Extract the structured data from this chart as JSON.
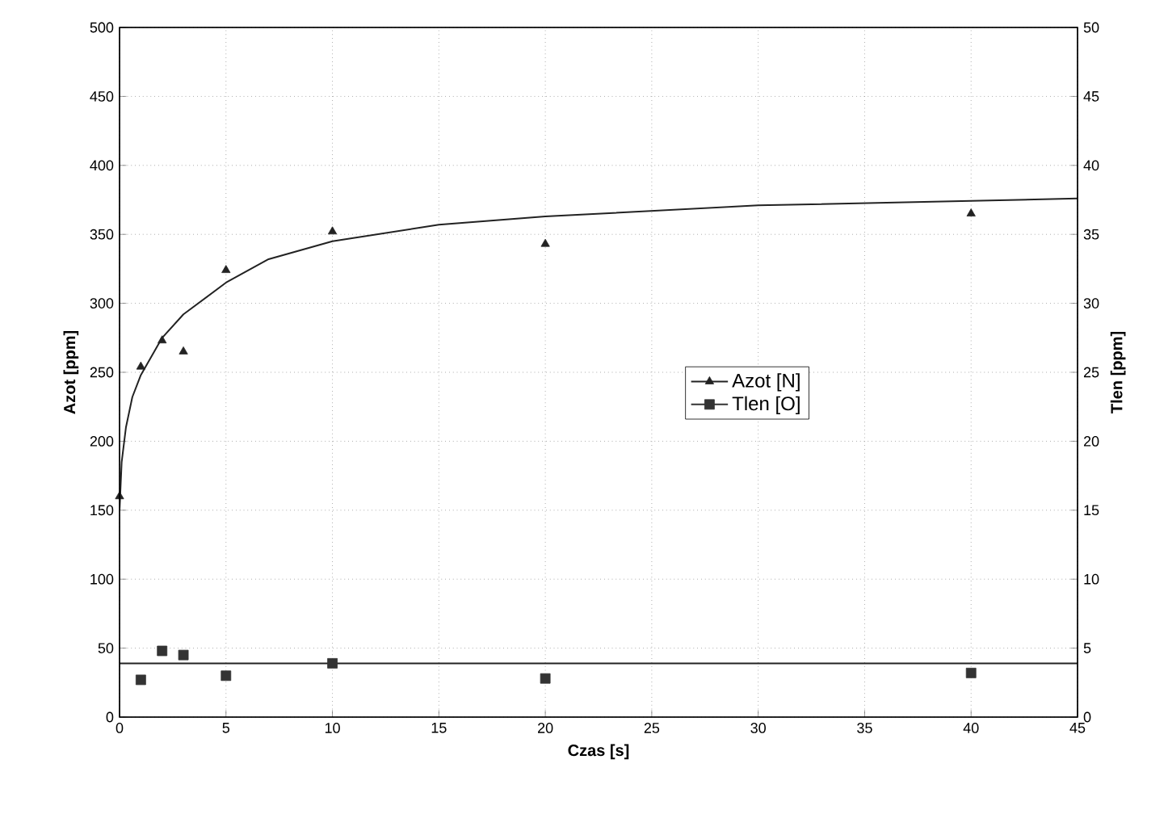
{
  "chart_data": {
    "type": "scatter",
    "xlabel": "Czas [s]",
    "ylabel": "Azot [ppm]",
    "y2label": "Tlen [ppm]",
    "xlim": [
      0,
      45
    ],
    "xticks": [
      0,
      5,
      10,
      15,
      20,
      25,
      30,
      35,
      40,
      45
    ],
    "ylim": [
      0,
      500
    ],
    "yticks": [
      0,
      50,
      100,
      150,
      200,
      250,
      300,
      350,
      400,
      450,
      500
    ],
    "y2lim": [
      0,
      50
    ],
    "y2ticks": [
      0,
      5,
      10,
      15,
      20,
      25,
      30,
      35,
      40,
      45,
      50
    ],
    "grid": true,
    "legend": "right",
    "series": [
      {
        "name": "Azot [N]",
        "marker": "triangle",
        "color": "#222222",
        "x": [
          0,
          1,
          2,
          3,
          5,
          10,
          20,
          40
        ],
        "values": [
          160,
          254,
          273,
          265,
          324,
          352,
          343,
          365
        ]
      },
      {
        "name": "Tlen [O]",
        "marker": "square",
        "color": "#333333",
        "axis": "y2",
        "x": [
          1,
          2,
          3,
          5,
          10,
          20,
          40
        ],
        "values": [
          2.7,
          4.8,
          4.5,
          3.0,
          3.9,
          2.8,
          3.2
        ]
      },
      {
        "type": "line",
        "marker": "none",
        "color": "#222222",
        "x": [
          0,
          0.1,
          0.3,
          0.6,
          1,
          2,
          3,
          5,
          7,
          10,
          15,
          20,
          30,
          45
        ],
        "values": [
          150,
          185,
          210,
          232,
          248,
          275,
          292,
          315,
          332,
          345,
          357,
          363,
          371,
          376
        ]
      },
      {
        "type": "line",
        "marker": "none",
        "color": "#222222",
        "axis": "y2",
        "x": [
          0,
          45
        ],
        "values": [
          3.9,
          3.9
        ]
      }
    ]
  }
}
